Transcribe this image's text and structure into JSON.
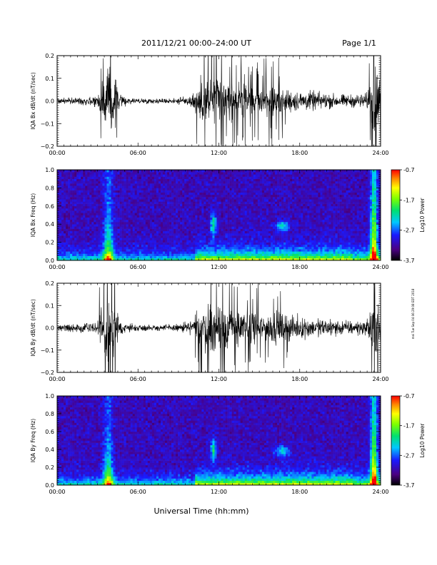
{
  "header": {
    "title": "2011/12/21  00:00–24:00 UT",
    "page": "Page 1/1"
  },
  "footer": {
    "xlabel": "Universal Time (hh:mm)",
    "side_note": "mei Tue Sep 04 06:29:08 EDT 2018"
  },
  "chart_data": [
    {
      "type": "line",
      "panel": "bx-waveform",
      "ylabel": "IQA Bx dB/dt (nT/sec)",
      "ylim": [
        -0.2,
        0.2
      ],
      "yticks": [
        "0.2",
        "0.1",
        "0.0",
        "−0.1",
        "−0.2"
      ],
      "yticks_values": [
        0.2,
        0.1,
        0.0,
        -0.1,
        -0.2
      ],
      "xlim": [
        0,
        24
      ],
      "xticks": [
        "00:00",
        "06:00",
        "12:00",
        "18:00",
        "24:00"
      ],
      "series_envelope": {
        "x_hours": [
          0,
          1,
          2,
          3,
          3.4,
          3.8,
          4.2,
          4.6,
          5,
          6,
          8,
          9,
          10,
          10.5,
          11,
          11.5,
          12,
          12.5,
          13,
          14,
          15,
          16,
          17,
          18,
          19,
          20,
          21,
          22,
          23,
          23.4,
          23.8,
          24
        ],
        "amplitude": [
          0.02,
          0.02,
          0.025,
          0.04,
          0.12,
          0.2,
          0.18,
          0.05,
          0.03,
          0.015,
          0.015,
          0.02,
          0.04,
          0.12,
          0.14,
          0.16,
          0.17,
          0.12,
          0.11,
          0.09,
          0.08,
          0.1,
          0.08,
          0.06,
          0.06,
          0.05,
          0.04,
          0.04,
          0.05,
          0.2,
          0.2,
          0.1
        ]
      }
    },
    {
      "type": "heatmap",
      "panel": "bx-spectrogram",
      "ylabel": "IQA Bx Freq (Hz)",
      "ylim": [
        0.0,
        1.0
      ],
      "yticks": [
        "1.0",
        "0.8",
        "0.6",
        "0.4",
        "0.2",
        "0.0"
      ],
      "yticks_values": [
        1.0,
        0.8,
        0.6,
        0.4,
        0.2,
        0.0
      ],
      "xlim": [
        0,
        24
      ],
      "xticks": [
        "00:00",
        "06:00",
        "12:00",
        "18:00",
        "24:00"
      ],
      "colorbar": {
        "label": "Log10 Power",
        "range": [
          -3.7,
          -0.7
        ],
        "ticks": [
          "-0.7",
          "-1.7",
          "-2.7",
          "-3.7"
        ],
        "ticks_values": [
          -0.7,
          -1.7,
          -2.7,
          -3.7
        ]
      }
    },
    {
      "type": "line",
      "panel": "by-waveform",
      "ylabel": "IQA By dB/dt (nT/sec)",
      "ylim": [
        -0.2,
        0.2
      ],
      "yticks": [
        "0.2",
        "0.1",
        "0.0",
        "−0.1",
        "−0.2"
      ],
      "yticks_values": [
        0.2,
        0.1,
        0.0,
        -0.1,
        -0.2
      ],
      "xlim": [
        0,
        24
      ],
      "xticks": [
        "00:00",
        "06:00",
        "12:00",
        "18:00",
        "24:00"
      ],
      "series_envelope": {
        "x_hours": [
          0,
          1,
          2,
          3,
          3.4,
          3.8,
          4.2,
          4.6,
          5,
          6,
          8,
          9,
          10,
          10.5,
          11,
          11.5,
          12,
          12.5,
          13,
          14,
          15,
          16,
          17,
          18,
          19,
          20,
          21,
          22,
          23,
          23.4,
          23.8,
          24
        ],
        "amplitude": [
          0.025,
          0.025,
          0.03,
          0.05,
          0.16,
          0.2,
          0.19,
          0.06,
          0.035,
          0.02,
          0.02,
          0.025,
          0.05,
          0.13,
          0.15,
          0.17,
          0.17,
          0.15,
          0.12,
          0.1,
          0.09,
          0.1,
          0.09,
          0.07,
          0.06,
          0.06,
          0.05,
          0.045,
          0.05,
          0.2,
          0.2,
          0.12
        ]
      }
    },
    {
      "type": "heatmap",
      "panel": "by-spectrogram",
      "ylabel": "IQA By Freq (Hz)",
      "ylim": [
        0.0,
        1.0
      ],
      "yticks": [
        "1.0",
        "0.8",
        "0.6",
        "0.4",
        "0.2",
        "0.0"
      ],
      "yticks_values": [
        1.0,
        0.8,
        0.6,
        0.4,
        0.2,
        0.0
      ],
      "xlim": [
        0,
        24
      ],
      "xticks": [
        "00:00",
        "06:00",
        "12:00",
        "18:00",
        "24:00"
      ],
      "colorbar": {
        "label": "Log10 Power",
        "range": [
          -3.7,
          -0.7
        ],
        "ticks": [
          "-0.7",
          "-1.7",
          "-2.7",
          "-3.7"
        ],
        "ticks_values": [
          -0.7,
          -1.7,
          -2.7,
          -3.7
        ]
      }
    }
  ]
}
